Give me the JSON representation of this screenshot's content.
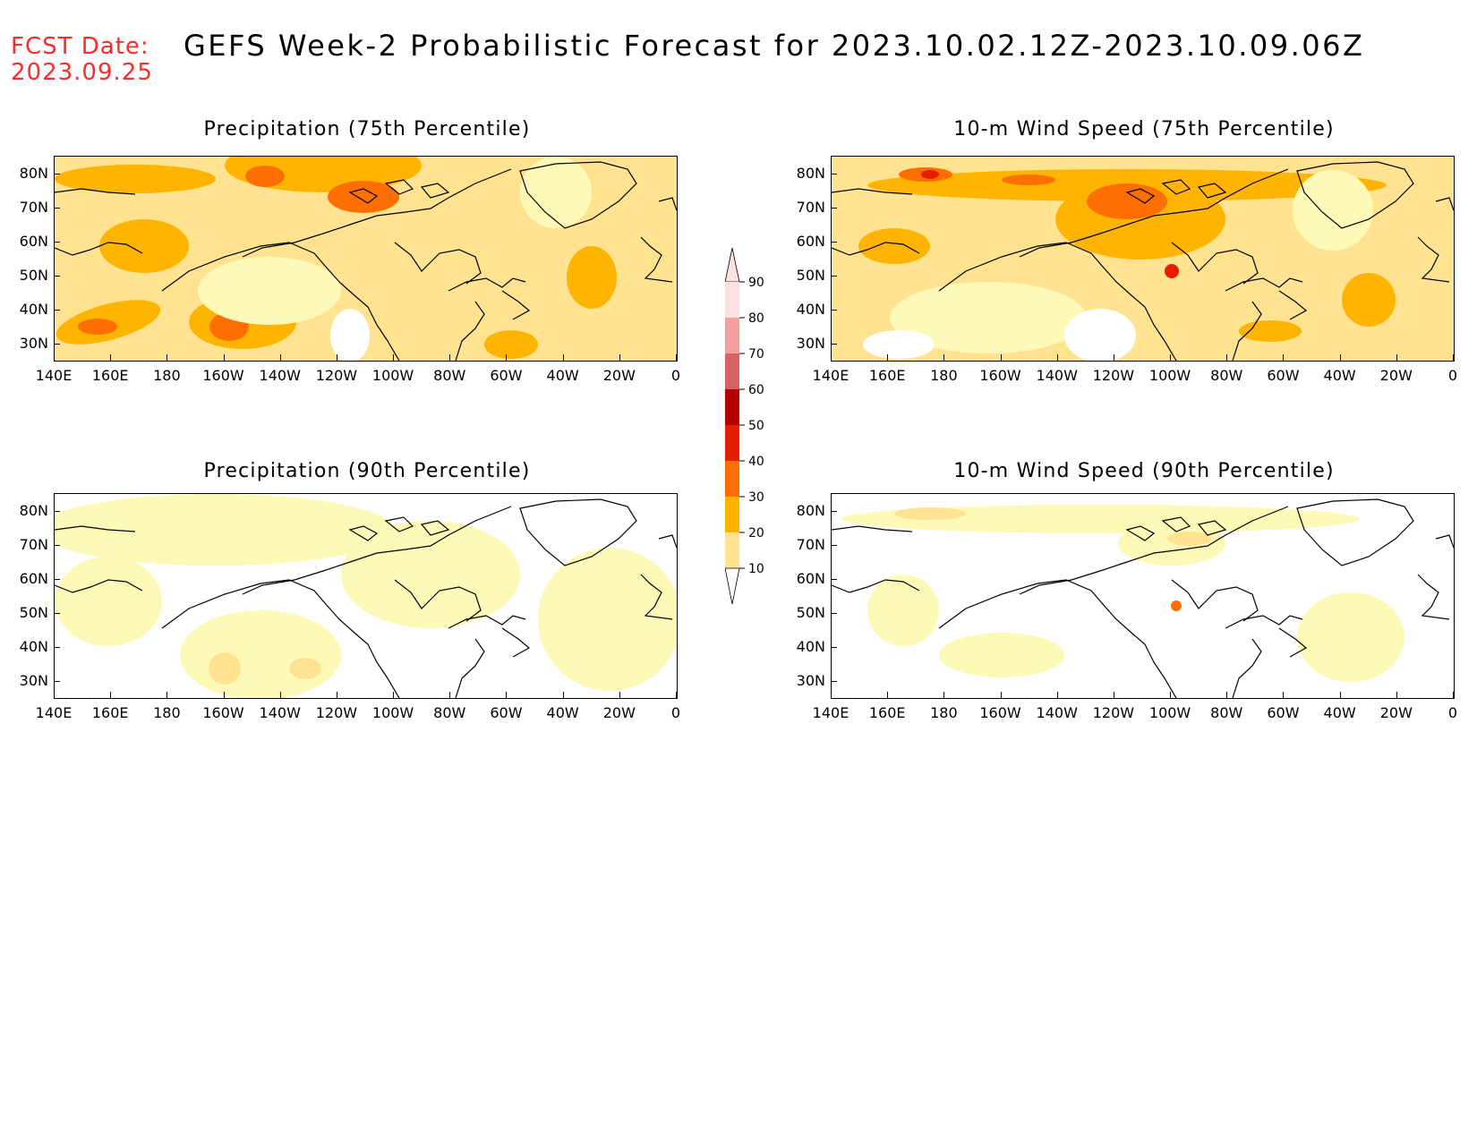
{
  "header": {
    "fcst_line1": "FCST Date:",
    "fcst_line2": "2023.09.25",
    "title": "GEFS Week-2 Probabilistic Forecast for 2023.10.02.12Z-2023.10.09.06Z"
  },
  "panels": [
    {
      "title": "Precipitation (75th Percentile)"
    },
    {
      "title": "10-m Wind Speed (75th Percentile)"
    },
    {
      "title": "Precipitation (90th Percentile)"
    },
    {
      "title": "10-m Wind Speed (90th Percentile)"
    }
  ],
  "axes": {
    "lat_labels": [
      "80N",
      "70N",
      "60N",
      "50N",
      "40N",
      "30N"
    ],
    "lon_labels": [
      "140E",
      "160E",
      "180",
      "160W",
      "140W",
      "120W",
      "100W",
      "80W",
      "60W",
      "40W",
      "20W",
      "0"
    ]
  },
  "colorbar": {
    "levels": [
      "10",
      "20",
      "30",
      "40",
      "50",
      "60",
      "70",
      "80",
      "90"
    ],
    "colors": [
      "#fff9b8",
      "#ffe391",
      "#ffb400",
      "#ff6e00",
      "#e61e00",
      "#b40000",
      "#d76262",
      "#f2a0a0",
      "#fde0e0"
    ]
  }
}
